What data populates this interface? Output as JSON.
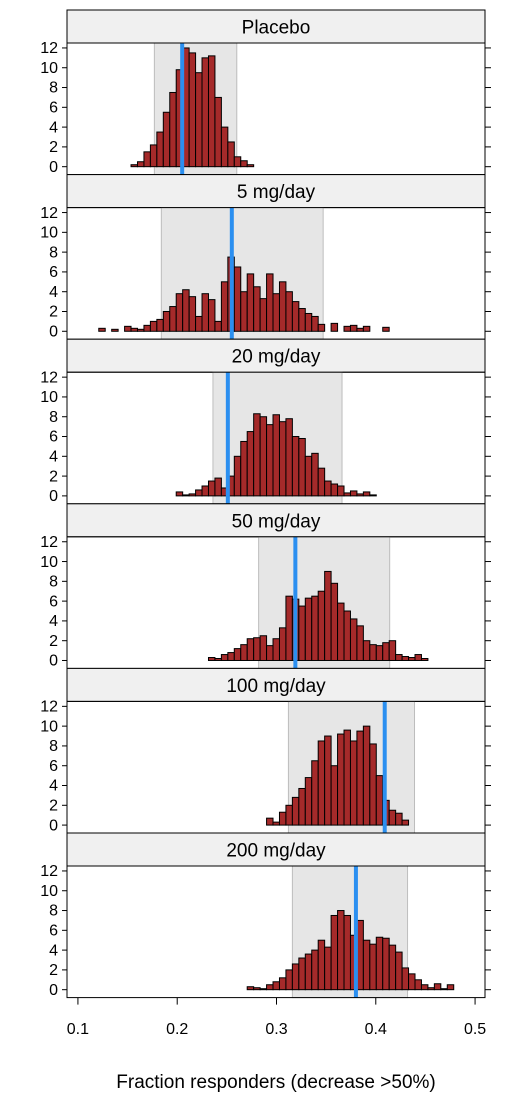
{
  "chart_data": [
    {
      "type": "histogram",
      "title": "Placebo",
      "color": "#a52a2a",
      "interval_color": "#e6e6e6",
      "reference_color": "#2b8ff0",
      "bins": [
        0.108,
        0.1145,
        0.121,
        0.1275,
        0.134,
        0.1405,
        0.147,
        0.1535,
        0.16,
        0.1665,
        0.173,
        0.1795,
        0.186,
        0.1925,
        0.199,
        0.2055,
        0.212,
        0.2185,
        0.225,
        0.2315,
        0.238,
        0.2445,
        0.251,
        0.2575,
        0.264,
        0.2705,
        0.277,
        0.2835,
        0.29,
        0.2965,
        0.303,
        0.3095,
        0.316,
        0.3225,
        0.329,
        0.3355,
        0.342,
        0.3485,
        0.355,
        0.3615,
        0.368,
        0.3745,
        0.381,
        0.3875,
        0.394,
        0.4005,
        0.407,
        0.4135,
        0.42,
        0.4265,
        0.433,
        0.4395,
        0.446,
        0.4525,
        0.459,
        0.4655,
        0.472,
        0.4785,
        0.485,
        0.4915,
        0.498
      ],
      "values": [
        0,
        0,
        0,
        0,
        0,
        0,
        0,
        0.2,
        0.5,
        1.5,
        2.2,
        3.5,
        5.5,
        7.5,
        9.8,
        12,
        11.5,
        9.5,
        11,
        11.2,
        7,
        4,
        2.5,
        1,
        0.6,
        0.2,
        0,
        0,
        0,
        0,
        0,
        0,
        0,
        0,
        0,
        0,
        0,
        0,
        0,
        0,
        0,
        0,
        0,
        0,
        0,
        0,
        0,
        0,
        0,
        0,
        0,
        0,
        0,
        0,
        0,
        0,
        0,
        0,
        0,
        0
      ],
      "interval": [
        0.177,
        0.26
      ],
      "reference": 0.205,
      "xlim": [
        0.089,
        0.51
      ],
      "ylim": [
        -0.8,
        12.5
      ],
      "yticks": [
        0,
        2,
        4,
        6,
        8,
        10,
        12
      ]
    },
    {
      "type": "histogram",
      "title": "5 mg/day",
      "color": "#a52a2a",
      "interval_color": "#e6e6e6",
      "reference_color": "#2b8ff0",
      "bins": [
        0.108,
        0.1145,
        0.121,
        0.1275,
        0.134,
        0.1405,
        0.147,
        0.1535,
        0.16,
        0.1665,
        0.173,
        0.1795,
        0.186,
        0.1925,
        0.199,
        0.2055,
        0.212,
        0.2185,
        0.225,
        0.2315,
        0.238,
        0.2445,
        0.251,
        0.2575,
        0.264,
        0.2705,
        0.277,
        0.2835,
        0.29,
        0.2965,
        0.303,
        0.3095,
        0.316,
        0.3225,
        0.329,
        0.3355,
        0.342,
        0.3485,
        0.355,
        0.3615,
        0.368,
        0.3745,
        0.381,
        0.3875,
        0.394,
        0.4005,
        0.407,
        0.4135,
        0.42,
        0.4265,
        0.433,
        0.4395,
        0.446,
        0.4525,
        0.459,
        0.4655,
        0.472,
        0.4785,
        0.485,
        0.4915,
        0.498
      ],
      "values": [
        0,
        0,
        0.3,
        0,
        0.2,
        0,
        0.5,
        0.3,
        0.2,
        0.6,
        1,
        1.2,
        2,
        2.5,
        3.8,
        4.2,
        3.5,
        1.5,
        3.8,
        3.2,
        1,
        5,
        7.5,
        6.5,
        4,
        5.8,
        4.5,
        3.3,
        5.8,
        3.8,
        5,
        4,
        3,
        2.3,
        1.8,
        1.5,
        0.7,
        0,
        0.8,
        0,
        0.5,
        0.6,
        0.3,
        0.5,
        0,
        0,
        0.4,
        0,
        0,
        0,
        0,
        0,
        0,
        0,
        0,
        0,
        0,
        0,
        0,
        0
      ],
      "interval": [
        0.184,
        0.347
      ],
      "reference": 0.255,
      "xlim": [
        0.089,
        0.51
      ],
      "ylim": [
        -0.8,
        12.5
      ],
      "yticks": [
        0,
        2,
        4,
        6,
        8,
        10,
        12
      ]
    },
    {
      "type": "histogram",
      "title": "20 mg/day",
      "color": "#a52a2a",
      "interval_color": "#e6e6e6",
      "reference_color": "#2b8ff0",
      "bins": [
        0.108,
        0.1145,
        0.121,
        0.1275,
        0.134,
        0.1405,
        0.147,
        0.1535,
        0.16,
        0.1665,
        0.173,
        0.1795,
        0.186,
        0.1925,
        0.199,
        0.2055,
        0.212,
        0.2185,
        0.225,
        0.2315,
        0.238,
        0.2445,
        0.251,
        0.2575,
        0.264,
        0.2705,
        0.277,
        0.2835,
        0.29,
        0.2965,
        0.303,
        0.3095,
        0.316,
        0.3225,
        0.329,
        0.3355,
        0.342,
        0.3485,
        0.355,
        0.3615,
        0.368,
        0.3745,
        0.381,
        0.3875,
        0.394,
        0.4005,
        0.407,
        0.4135,
        0.42,
        0.4265,
        0.433,
        0.4395,
        0.446,
        0.4525,
        0.459,
        0.4655,
        0.472,
        0.4785,
        0.485,
        0.4915,
        0.498
      ],
      "values": [
        0,
        0,
        0,
        0,
        0,
        0,
        0,
        0,
        0,
        0,
        0,
        0,
        0,
        0,
        0.4,
        0.1,
        0.2,
        0.6,
        1,
        1.5,
        1.8,
        0.8,
        2,
        4,
        5.5,
        6.5,
        8.3,
        8,
        7.2,
        8.2,
        7.5,
        7.8,
        6,
        5.8,
        4,
        4.3,
        2.8,
        1.5,
        1.2,
        1,
        0.3,
        0.5,
        0.2,
        0.4,
        0.1,
        0,
        0,
        0,
        0,
        0,
        0,
        0,
        0,
        0,
        0,
        0,
        0,
        0,
        0,
        0
      ],
      "interval": [
        0.236,
        0.366
      ],
      "reference": 0.251,
      "xlim": [
        0.089,
        0.51
      ],
      "ylim": [
        -0.8,
        12.5
      ],
      "yticks": [
        0,
        2,
        4,
        6,
        8,
        10,
        12
      ]
    },
    {
      "type": "histogram",
      "title": "50 mg/day",
      "color": "#a52a2a",
      "interval_color": "#e6e6e6",
      "reference_color": "#2b8ff0",
      "bins": [
        0.108,
        0.1145,
        0.121,
        0.1275,
        0.134,
        0.1405,
        0.147,
        0.1535,
        0.16,
        0.1665,
        0.173,
        0.1795,
        0.186,
        0.1925,
        0.199,
        0.2055,
        0.212,
        0.2185,
        0.225,
        0.2315,
        0.238,
        0.2445,
        0.251,
        0.2575,
        0.264,
        0.2705,
        0.277,
        0.2835,
        0.29,
        0.2965,
        0.303,
        0.3095,
        0.316,
        0.3225,
        0.329,
        0.3355,
        0.342,
        0.3485,
        0.355,
        0.3615,
        0.368,
        0.3745,
        0.381,
        0.3875,
        0.394,
        0.4005,
        0.407,
        0.4135,
        0.42,
        0.4265,
        0.433,
        0.4395,
        0.446,
        0.4525,
        0.459,
        0.4655,
        0.472,
        0.4785,
        0.485,
        0.4915,
        0.498
      ],
      "values": [
        0,
        0,
        0,
        0,
        0,
        0,
        0,
        0,
        0,
        0,
        0,
        0,
        0,
        0,
        0,
        0,
        0,
        0,
        0,
        0.3,
        0.2,
        0.6,
        0.8,
        1.2,
        1.6,
        2.2,
        2.3,
        2.5,
        1.5,
        2.2,
        3.3,
        6.5,
        6.2,
        5.5,
        6.3,
        6.5,
        7,
        9,
        7.8,
        5.8,
        5,
        4.2,
        3.5,
        2,
        1.6,
        1.5,
        1.8,
        2,
        0.6,
        0.4,
        0.3,
        0.6,
        0.2,
        0,
        0,
        0,
        0,
        0,
        0,
        0
      ],
      "interval": [
        0.282,
        0.414
      ],
      "reference": 0.319,
      "xlim": [
        0.089,
        0.51
      ],
      "ylim": [
        -0.8,
        12.5
      ],
      "yticks": [
        0,
        2,
        4,
        6,
        8,
        10,
        12
      ]
    },
    {
      "type": "histogram",
      "title": "100 mg/day",
      "color": "#a52a2a",
      "interval_color": "#e6e6e6",
      "reference_color": "#2b8ff0",
      "bins": [
        0.108,
        0.1145,
        0.121,
        0.1275,
        0.134,
        0.1405,
        0.147,
        0.1535,
        0.16,
        0.1665,
        0.173,
        0.1795,
        0.186,
        0.1925,
        0.199,
        0.2055,
        0.212,
        0.2185,
        0.225,
        0.2315,
        0.238,
        0.2445,
        0.251,
        0.2575,
        0.264,
        0.2705,
        0.277,
        0.2835,
        0.29,
        0.2965,
        0.303,
        0.3095,
        0.316,
        0.3225,
        0.329,
        0.3355,
        0.342,
        0.3485,
        0.355,
        0.3615,
        0.368,
        0.3745,
        0.381,
        0.3875,
        0.394,
        0.4005,
        0.407,
        0.4135,
        0.42,
        0.4265,
        0.433,
        0.4395,
        0.446,
        0.4525,
        0.459,
        0.4655,
        0.472,
        0.4785,
        0.485,
        0.4915,
        0.498
      ],
      "values": [
        0,
        0,
        0,
        0,
        0,
        0,
        0,
        0,
        0,
        0,
        0,
        0,
        0,
        0,
        0,
        0,
        0,
        0,
        0,
        0,
        0,
        0,
        0,
        0,
        0,
        0,
        0,
        0,
        0.7,
        0.3,
        1.3,
        2,
        2.8,
        3.7,
        4.8,
        6.5,
        8.5,
        9,
        6,
        9.2,
        9.6,
        8.5,
        9.5,
        10,
        8.2,
        5,
        2.5,
        1.5,
        1.2,
        0.5,
        0,
        0,
        0,
        0,
        0,
        0,
        0,
        0,
        0,
        0
      ],
      "interval": [
        0.312,
        0.439
      ],
      "reference": 0.409,
      "xlim": [
        0.089,
        0.51
      ],
      "ylim": [
        -0.8,
        12.5
      ],
      "yticks": [
        0,
        2,
        4,
        6,
        8,
        10,
        12
      ]
    },
    {
      "type": "histogram",
      "title": "200 mg/day",
      "color": "#a52a2a",
      "interval_color": "#e6e6e6",
      "reference_color": "#2b8ff0",
      "bins": [
        0.108,
        0.1145,
        0.121,
        0.1275,
        0.134,
        0.1405,
        0.147,
        0.1535,
        0.16,
        0.1665,
        0.173,
        0.1795,
        0.186,
        0.1925,
        0.199,
        0.2055,
        0.212,
        0.2185,
        0.225,
        0.2315,
        0.238,
        0.2445,
        0.251,
        0.2575,
        0.264,
        0.2705,
        0.277,
        0.2835,
        0.29,
        0.2965,
        0.303,
        0.3095,
        0.316,
        0.3225,
        0.329,
        0.3355,
        0.342,
        0.3485,
        0.355,
        0.3615,
        0.368,
        0.3745,
        0.381,
        0.3875,
        0.394,
        0.4005,
        0.407,
        0.4135,
        0.42,
        0.4265,
        0.433,
        0.4395,
        0.446,
        0.4525,
        0.459,
        0.4655,
        0.472,
        0.4785,
        0.485,
        0.4915,
        0.498
      ],
      "values": [
        0,
        0,
        0,
        0,
        0,
        0,
        0,
        0,
        0,
        0,
        0,
        0,
        0,
        0,
        0,
        0,
        0,
        0,
        0,
        0,
        0,
        0,
        0,
        0,
        0,
        0.3,
        0.2,
        0.1,
        0.5,
        0.8,
        1.2,
        2,
        2.6,
        3.2,
        3.6,
        4,
        5,
        4.3,
        7.5,
        8,
        7.5,
        5.5,
        7,
        5,
        4.6,
        5.3,
        5.2,
        4.5,
        3.8,
        2.2,
        1.6,
        1,
        0.5,
        0.2,
        0.6,
        0.1,
        0.5,
        0,
        0,
        0
      ],
      "interval": [
        0.316,
        0.432
      ],
      "reference": 0.38,
      "xlim": [
        0.089,
        0.51
      ],
      "ylim": [
        -0.8,
        12.5
      ],
      "yticks": [
        0,
        2,
        4,
        6,
        8,
        10,
        12
      ],
      "xticks": [
        0.1,
        0.2,
        0.3,
        0.4,
        0.5
      ],
      "x_label": "Fraction responders (decrease >50%)"
    }
  ]
}
